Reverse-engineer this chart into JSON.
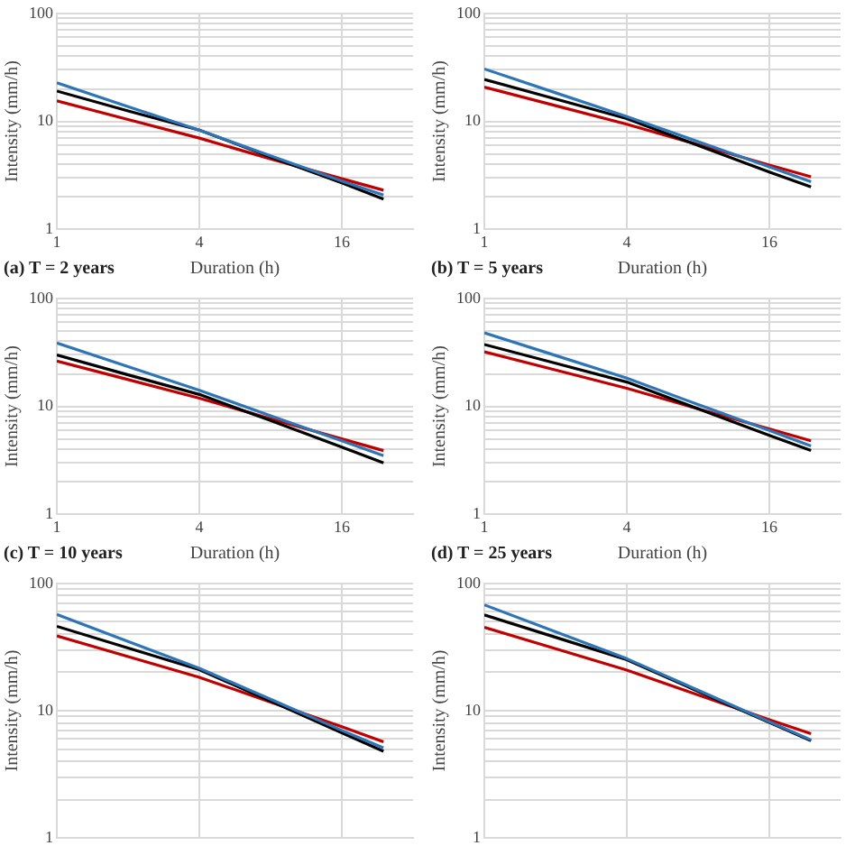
{
  "chart_data": [
    {
      "type": "line",
      "annotations": [
        "(a) T = 2 years"
      ],
      "xlabel": "Duration (h)",
      "ylabel": "Intensity (mm/h)",
      "x": [
        1,
        2,
        4,
        8,
        16,
        24
      ],
      "xlim": [
        1,
        32
      ],
      "ylim": [
        1,
        100
      ],
      "xticks": [
        1,
        4,
        16
      ],
      "yticks": [
        1,
        {
          "value": 2,
          "label": null
        },
        {
          "value": 3,
          "label": null
        },
        {
          "value": 4,
          "label": null
        },
        {
          "value": 5,
          "label": null
        },
        {
          "value": 6,
          "label": null
        },
        {
          "value": 7,
          "label": null
        },
        {
          "value": 8,
          "label": null
        },
        {
          "value": 9,
          "label": null
        },
        10,
        {
          "value": 20,
          "label": null
        },
        {
          "value": 30,
          "label": null
        },
        {
          "value": 40,
          "label": null
        },
        {
          "value": 50,
          "label": null
        },
        {
          "value": 60,
          "label": null
        },
        {
          "value": 70,
          "label": null
        },
        {
          "value": 80,
          "label": null
        },
        {
          "value": 90,
          "label": null
        },
        100
      ],
      "log": "xy",
      "grid": true,
      "line_style": "solid",
      "series": [
        {
          "color": "#2e75b6",
          "values": [
            22.8,
            13.7,
            8.3,
            4.8,
            2.8,
            2.08
          ]
        },
        {
          "color": "#000000",
          "values": [
            19.1,
            12.5,
            8.3,
            4.7,
            2.7,
            1.91
          ]
        },
        {
          "color": "#c00000",
          "values": [
            15.5,
            10.4,
            7.0,
            4.5,
            2.95,
            2.31
          ]
        }
      ]
    },
    {
      "type": "line",
      "annotations": [
        "(b) T = 5 years"
      ],
      "xlabel": "Duration (h)",
      "ylabel": "Intensity (mm/h)",
      "x": [
        1,
        2,
        4,
        8,
        16,
        24
      ],
      "xlim": [
        1,
        32
      ],
      "ylim": [
        1,
        100
      ],
      "xticks": [
        1,
        4,
        16
      ],
      "yticks": [
        1,
        {
          "value": 2,
          "label": null
        },
        {
          "value": 3,
          "label": null
        },
        {
          "value": 4,
          "label": null
        },
        {
          "value": 5,
          "label": null
        },
        {
          "value": 6,
          "label": null
        },
        {
          "value": 7,
          "label": null
        },
        {
          "value": 8,
          "label": null
        },
        {
          "value": 9,
          "label": null
        },
        10,
        {
          "value": 20,
          "label": null
        },
        {
          "value": 30,
          "label": null
        },
        {
          "value": 40,
          "label": null
        },
        {
          "value": 50,
          "label": null
        },
        {
          "value": 60,
          "label": null
        },
        {
          "value": 70,
          "label": null
        },
        {
          "value": 80,
          "label": null
        },
        {
          "value": 90,
          "label": null
        },
        100
      ],
      "log": "xy",
      "grid": true,
      "line_style": "solid",
      "series": [
        {
          "color": "#2e75b6",
          "values": [
            30.6,
            18.4,
            11.1,
            6.5,
            3.8,
            2.77
          ]
        },
        {
          "color": "#000000",
          "values": [
            24.5,
            16.1,
            10.6,
            6.0,
            3.4,
            2.47
          ]
        },
        {
          "color": "#c00000",
          "values": [
            20.8,
            14.0,
            9.4,
            6.1,
            3.95,
            3.07
          ]
        }
      ]
    },
    {
      "type": "line",
      "annotations": [
        "(c) T = 10 years"
      ],
      "xlabel": "Duration (h)",
      "ylabel": "Intensity (mm/h)",
      "x": [
        1,
        2,
        4,
        8,
        16,
        24
      ],
      "xlim": [
        1,
        32
      ],
      "ylim": [
        1,
        100
      ],
      "xticks": [
        1,
        4,
        16
      ],
      "yticks": [
        1,
        {
          "value": 2,
          "label": null
        },
        {
          "value": 3,
          "label": null
        },
        {
          "value": 4,
          "label": null
        },
        {
          "value": 5,
          "label": null
        },
        {
          "value": 6,
          "label": null
        },
        {
          "value": 7,
          "label": null
        },
        {
          "value": 8,
          "label": null
        },
        {
          "value": 9,
          "label": null
        },
        10,
        {
          "value": 20,
          "label": null
        },
        {
          "value": 30,
          "label": null
        },
        {
          "value": 40,
          "label": null
        },
        {
          "value": 50,
          "label": null
        },
        {
          "value": 60,
          "label": null
        },
        {
          "value": 70,
          "label": null
        },
        {
          "value": 80,
          "label": null
        },
        {
          "value": 90,
          "label": null
        },
        100
      ],
      "log": "xy",
      "grid": true,
      "line_style": "solid",
      "series": [
        {
          "color": "#2e75b6",
          "values": [
            38.7,
            23.3,
            14.1,
            8.2,
            4.8,
            3.5
          ]
        },
        {
          "color": "#000000",
          "values": [
            29.9,
            19.6,
            12.9,
            7.4,
            4.2,
            3.0
          ]
        },
        {
          "color": "#c00000",
          "values": [
            26.3,
            17.7,
            11.9,
            7.7,
            5.0,
            3.9
          ]
        }
      ]
    },
    {
      "type": "line",
      "annotations": [
        "(d) T = 25 years"
      ],
      "xlabel": "Duration (h)",
      "ylabel": "Intensity (mm/h)",
      "x": [
        1,
        2,
        4,
        8,
        16,
        24
      ],
      "xlim": [
        1,
        32
      ],
      "ylim": [
        1,
        100
      ],
      "xticks": [
        1,
        4,
        16
      ],
      "yticks": [
        1,
        {
          "value": 2,
          "label": null
        },
        {
          "value": 3,
          "label": null
        },
        {
          "value": 4,
          "label": null
        },
        {
          "value": 5,
          "label": null
        },
        {
          "value": 6,
          "label": null
        },
        {
          "value": 7,
          "label": null
        },
        {
          "value": 8,
          "label": null
        },
        {
          "value": 9,
          "label": null
        },
        10,
        {
          "value": 20,
          "label": null
        },
        {
          "value": 30,
          "label": null
        },
        {
          "value": 40,
          "label": null
        },
        {
          "value": 50,
          "label": null
        },
        {
          "value": 60,
          "label": null
        },
        {
          "value": 70,
          "label": null
        },
        {
          "value": 80,
          "label": null
        },
        {
          "value": 90,
          "label": null
        },
        100
      ],
      "log": "xy",
      "grid": true,
      "line_style": "solid",
      "series": [
        {
          "color": "#2e75b6",
          "values": [
            48,
            29.6,
            18.3,
            10.4,
            6.0,
            4.3
          ]
        },
        {
          "color": "#000000",
          "values": [
            37.4,
            25.1,
            16.8,
            9.5,
            5.4,
            3.9
          ]
        },
        {
          "color": "#c00000",
          "values": [
            32,
            21.7,
            14.7,
            9.5,
            6.2,
            4.8
          ]
        }
      ]
    },
    {
      "type": "line",
      "ylabel": "Intensity (mm/h)",
      "x": [
        1,
        2,
        4,
        8,
        16,
        24
      ],
      "xlim": [
        1,
        32
      ],
      "ylim": [
        1,
        100
      ],
      "xticks": [
        1,
        4,
        16
      ],
      "yticks": [
        1,
        {
          "value": 2,
          "label": null
        },
        {
          "value": 3,
          "label": null
        },
        {
          "value": 4,
          "label": null
        },
        {
          "value": 5,
          "label": null
        },
        {
          "value": 6,
          "label": null
        },
        {
          "value": 7,
          "label": null
        },
        {
          "value": 8,
          "label": null
        },
        {
          "value": 9,
          "label": null
        },
        10,
        {
          "value": 20,
          "label": null
        },
        {
          "value": 30,
          "label": null
        },
        {
          "value": 40,
          "label": null
        },
        {
          "value": 50,
          "label": null
        },
        {
          "value": 60,
          "label": null
        },
        {
          "value": 70,
          "label": null
        },
        {
          "value": 80,
          "label": null
        },
        {
          "value": 90,
          "label": null
        },
        100
      ],
      "log": "xy",
      "grid": true,
      "line_style": "solid",
      "tick_labels": "y",
      "series": [
        {
          "color": "#2e75b6",
          "values": [
            57,
            35,
            21.5,
            12.3,
            7.0,
            5.1
          ]
        },
        {
          "color": "#000000",
          "values": [
            46,
            31.1,
            21,
            11.9,
            6.7,
            4.8
          ]
        },
        {
          "color": "#c00000",
          "values": [
            38.7,
            26.6,
            18.3,
            11.7,
            7.5,
            5.7
          ]
        }
      ]
    },
    {
      "type": "line",
      "ylabel": "Intensity (mm/h)",
      "x": [
        1,
        2,
        4,
        8,
        16,
        24
      ],
      "xlim": [
        1,
        32
      ],
      "ylim": [
        1,
        100
      ],
      "xticks": [
        1,
        4,
        16
      ],
      "yticks": [
        1,
        {
          "value": 2,
          "label": null
        },
        {
          "value": 3,
          "label": null
        },
        {
          "value": 4,
          "label": null
        },
        {
          "value": 5,
          "label": null
        },
        {
          "value": 6,
          "label": null
        },
        {
          "value": 7,
          "label": null
        },
        {
          "value": 8,
          "label": null
        },
        {
          "value": 9,
          "label": null
        },
        10,
        {
          "value": 20,
          "label": null
        },
        {
          "value": 30,
          "label": null
        },
        {
          "value": 40,
          "label": null
        },
        {
          "value": 50,
          "label": null
        },
        {
          "value": 60,
          "label": null
        },
        {
          "value": 70,
          "label": null
        },
        {
          "value": 80,
          "label": null
        },
        {
          "value": 90,
          "label": null
        },
        100
      ],
      "log": "xy",
      "grid": true,
      "line_style": "solid",
      "tick_labels": "y",
      "series": [
        {
          "color": "#2e75b6",
          "values": [
            67.8,
            41.6,
            25.6,
            14.5,
            8.2,
            5.9
          ]
        },
        {
          "color": "#000000",
          "values": [
            56.6,
            37.7,
            25.1,
            14.2,
            8.1,
            5.8
          ]
        },
        {
          "color": "#c00000",
          "values": [
            45.2,
            30.7,
            20.8,
            13.3,
            8.5,
            6.6
          ]
        }
      ]
    }
  ]
}
